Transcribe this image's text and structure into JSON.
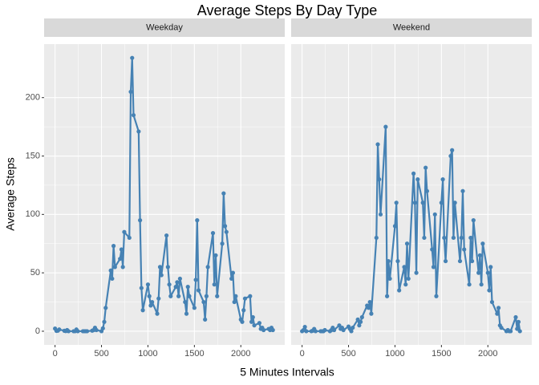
{
  "chart_data": {
    "type": "line",
    "title": "Average Steps By Day Type",
    "x_label": "5 Minutes Intervals",
    "y_label": "Average Steps",
    "color": "#4682b4",
    "grid": true,
    "xlim": [
      -117.75,
      2472.75
    ],
    "ylim": [
      -11.7,
      245.8
    ],
    "xticks": [
      0,
      500,
      1000,
      1500,
      2000
    ],
    "yticks": [
      0,
      50,
      100,
      150,
      200
    ],
    "x": [
      0,
      15,
      30,
      45,
      100,
      115,
      130,
      145,
      200,
      215,
      230,
      245,
      300,
      315,
      330,
      345,
      400,
      415,
      430,
      445,
      500,
      515,
      530,
      545,
      600,
      615,
      630,
      645,
      700,
      715,
      730,
      745,
      800,
      815,
      830,
      845,
      900,
      915,
      930,
      945,
      1000,
      1015,
      1030,
      1045,
      1100,
      1115,
      1130,
      1145,
      1200,
      1215,
      1230,
      1245,
      1300,
      1315,
      1330,
      1345,
      1400,
      1415,
      1430,
      1445,
      1500,
      1515,
      1530,
      1545,
      1600,
      1615,
      1630,
      1645,
      1700,
      1715,
      1730,
      1745,
      1800,
      1815,
      1830,
      1845,
      1900,
      1915,
      1930,
      1945,
      2000,
      2015,
      2030,
      2045,
      2100,
      2115,
      2130,
      2145,
      2200,
      2215,
      2230,
      2245,
      2300,
      2315,
      2330,
      2345
    ],
    "facets": [
      {
        "name": "Weekday",
        "values": [
          2.3,
          0.3,
          0.5,
          1.5,
          0.4,
          0.1,
          1,
          0,
          0,
          0,
          1.5,
          0,
          0,
          0,
          0,
          0,
          0.5,
          1,
          3,
          1,
          0,
          2.5,
          8,
          20,
          52,
          45,
          73,
          55,
          62,
          70,
          55,
          85,
          80,
          205,
          234,
          185,
          171,
          95,
          37,
          18,
          40,
          30,
          22,
          25,
          15,
          28,
          55,
          48,
          82,
          55,
          40,
          30,
          38,
          42,
          30,
          45,
          25,
          15,
          38,
          30,
          20,
          44,
          95,
          35,
          25,
          10,
          30,
          55,
          84,
          40,
          65,
          30,
          75,
          118,
          90,
          85,
          45,
          50,
          25,
          30,
          10,
          8,
          18,
          28,
          30,
          8,
          12,
          5,
          7,
          2,
          3,
          1,
          2,
          1,
          3,
          1
        ]
      },
      {
        "name": "Weekend",
        "values": [
          0,
          1,
          3.7,
          0,
          0,
          0.5,
          2,
          0,
          0,
          0,
          0,
          1,
          0,
          1,
          3,
          1,
          5,
          2,
          3,
          1,
          4,
          2,
          0,
          3,
          10,
          5,
          8,
          12,
          22,
          20,
          25,
          15,
          80,
          160,
          130,
          100,
          175,
          30,
          60,
          45,
          90,
          110,
          60,
          35,
          55,
          40,
          75,
          45,
          135,
          110,
          50,
          130,
          110,
          80,
          140,
          120,
          70,
          55,
          100,
          30,
          110,
          130,
          80,
          60,
          150,
          155,
          80,
          110,
          60,
          80,
          120,
          70,
          40,
          80,
          60,
          95,
          50,
          65,
          40,
          75,
          50,
          35,
          55,
          25,
          15,
          20,
          5,
          3,
          0,
          1,
          0,
          0,
          12,
          2,
          8,
          0
        ]
      }
    ]
  }
}
